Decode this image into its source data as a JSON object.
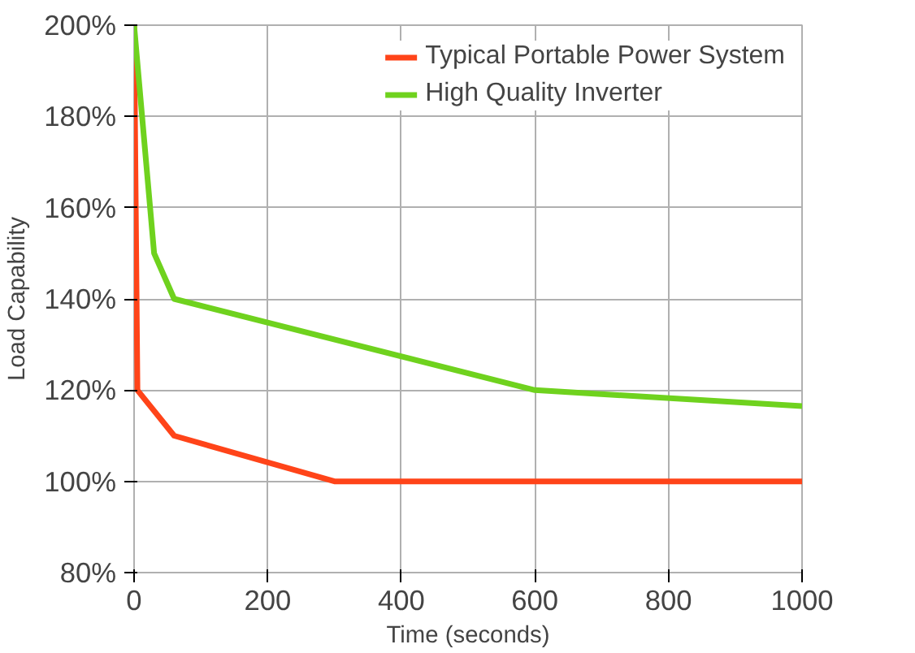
{
  "chart_data": {
    "type": "line",
    "xlabel": "Time (seconds)",
    "ylabel": "Load Capability",
    "xlim": [
      0,
      1000
    ],
    "xticks": [
      0,
      200,
      400,
      600,
      800,
      1000
    ],
    "ylim": [
      80,
      200
    ],
    "yticks": [
      {
        "value": 80,
        "label": "80%"
      },
      {
        "value": 100,
        "label": "100%"
      },
      {
        "value": 120,
        "label": "120%"
      },
      {
        "value": 140,
        "label": "140%"
      },
      {
        "value": 160,
        "label": "160%"
      },
      {
        "value": 180,
        "label": "180%"
      },
      {
        "value": 200,
        "label": "200%"
      }
    ],
    "grid": true,
    "legend": "top right",
    "marker": "none",
    "line_style": "solid",
    "series": [
      {
        "name": "Typical Portable Power System",
        "color": "#ff4419",
        "x": [
          0,
          5,
          60,
          300,
          1000
        ],
        "values": [
          200,
          120,
          110,
          100,
          100
        ]
      },
      {
        "name": "High Quality Inverter",
        "color": "#6fd21e",
        "x": [
          0,
          30,
          60,
          600,
          1000
        ],
        "values": [
          200,
          150,
          140,
          120,
          116.5
        ]
      }
    ]
  }
}
